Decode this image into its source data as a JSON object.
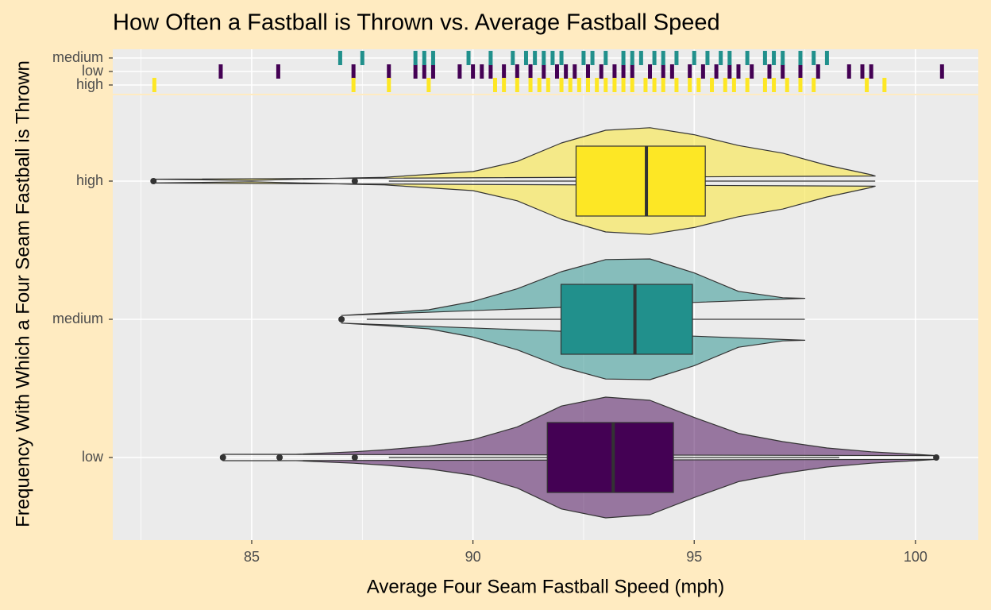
{
  "chart_data": {
    "type": "violin",
    "title": "How Often a Fastball is Thrown vs. Average Fastball Speed",
    "xlabel": "Average Four Seam Fastball Speed (mph)",
    "ylabel": "Frequency With Which a Four Seam Fastball is Thrown",
    "xlim": [
      81.86,
      101.42
    ],
    "xticks": [
      85,
      90,
      95,
      100
    ],
    "grid": true,
    "series": [
      {
        "name": "low",
        "color": "#440154",
        "box": {
          "whisker_low": 88.1,
          "q1": 91.68,
          "median": 93.17,
          "q3": 94.53,
          "whisker_high": 98.28
        },
        "outliers": [
          84.35,
          85.63,
          87.33,
          100.47
        ],
        "violin_x": [
          84.35,
          86,
          87.3,
          88,
          89,
          90,
          91,
          92,
          93,
          94,
          95,
          96,
          97,
          98,
          99,
          100,
          100.47
        ],
        "violin_density": [
          0.05,
          0.05,
          0.09,
          0.12,
          0.18,
          0.28,
          0.48,
          0.81,
          0.95,
          0.9,
          0.63,
          0.38,
          0.25,
          0.15,
          0.09,
          0.05,
          0.03
        ],
        "rug": [
          84.3,
          85.6,
          87.3,
          88.1,
          88.7,
          88.9,
          89.1,
          89.7,
          90.0,
          90.2,
          90.4,
          90.7,
          91.0,
          91.3,
          91.6,
          91.9,
          92.1,
          92.3,
          92.6,
          92.9,
          93.2,
          93.4,
          93.6,
          94.0,
          94.3,
          94.5,
          94.9,
          95.2,
          95.5,
          95.8,
          96.0,
          96.3,
          96.7,
          97.0,
          97.4,
          97.8,
          98.5,
          98.8,
          99.0,
          100.6
        ]
      },
      {
        "name": "medium",
        "color": "#21908C",
        "box": {
          "whisker_low": 87.6,
          "q1": 91.99,
          "median": 93.66,
          "q3": 94.96,
          "whisker_high": 97.5
        },
        "outliers": [
          87.03
        ],
        "violin_x": [
          87.03,
          88,
          89,
          90,
          91,
          92,
          93,
          94,
          95,
          96,
          97,
          97.5
        ],
        "violin_density": [
          0.06,
          0.1,
          0.15,
          0.28,
          0.48,
          0.75,
          0.94,
          0.95,
          0.73,
          0.44,
          0.34,
          0.33
        ],
        "rug": [
          87.0,
          87.5,
          88.7,
          88.9,
          89.1,
          89.9,
          90.4,
          90.9,
          91.2,
          91.4,
          91.6,
          91.8,
          92.0,
          92.5,
          92.7,
          93.0,
          93.4,
          93.6,
          93.8,
          94.1,
          94.3,
          94.6,
          95.0,
          95.3,
          95.6,
          95.8,
          96.2,
          96.6,
          96.8,
          97.0,
          97.4,
          97.7,
          98.0
        ]
      },
      {
        "name": "high",
        "color": "#FDE725",
        "box": {
          "whisker_low": 88.1,
          "q1": 92.33,
          "median": 93.92,
          "q3": 95.25,
          "whisker_high": 99.09
        },
        "outliers": [
          82.78,
          87.33
        ],
        "violin_x": [
          82.78,
          85,
          87.3,
          88,
          90,
          91,
          92,
          93,
          94,
          95,
          96,
          97,
          98,
          99,
          99.09
        ],
        "violin_density": [
          0.03,
          0.01,
          0.05,
          0.06,
          0.15,
          0.31,
          0.6,
          0.8,
          0.84,
          0.73,
          0.56,
          0.44,
          0.25,
          0.1,
          0.08
        ],
        "rug": [
          82.8,
          87.3,
          88.1,
          89.0,
          90.5,
          90.7,
          91.0,
          91.3,
          91.5,
          91.7,
          92.0,
          92.2,
          92.4,
          92.6,
          92.8,
          93.0,
          93.2,
          93.4,
          93.6,
          93.9,
          94.1,
          94.3,
          94.6,
          94.9,
          95.1,
          95.4,
          95.7,
          95.9,
          96.2,
          96.6,
          96.8,
          97.1,
          97.4,
          97.7,
          98.9,
          99.3
        ]
      }
    ]
  }
}
